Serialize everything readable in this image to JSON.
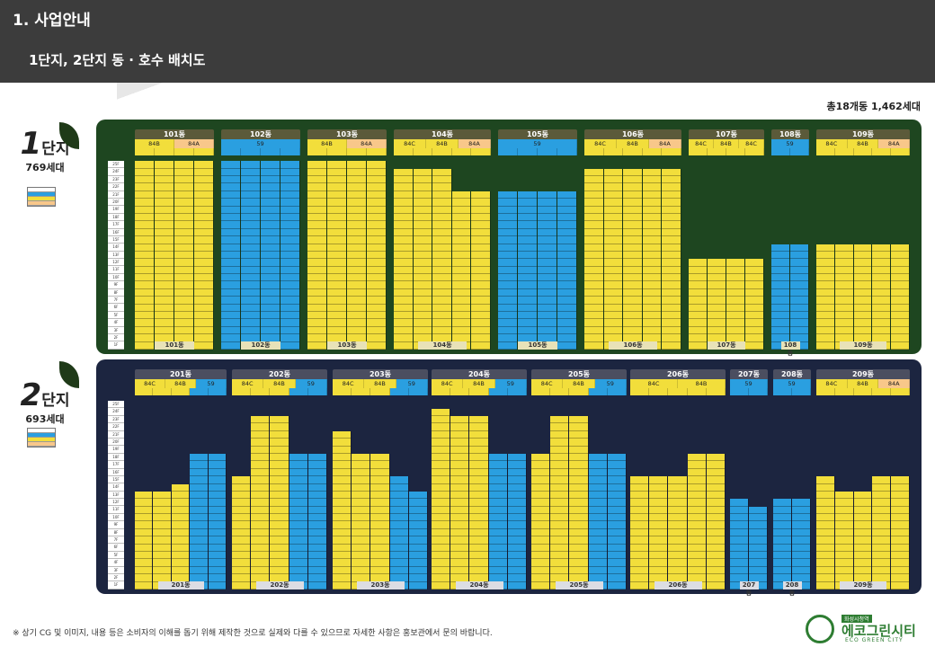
{
  "header": {
    "title": "1. 사업안내",
    "subtitle": "1단지, 2단지 동 · 호수 배치도"
  },
  "total": "총18개동 1,462세대",
  "danji1": {
    "num": "1",
    "label": "단지",
    "count": "769세대"
  },
  "danji2": {
    "num": "2",
    "label": "단지",
    "count": "693세대"
  },
  "floors": [
    "25F",
    "24F",
    "23F",
    "22F",
    "21F",
    "20F",
    "19F",
    "18F",
    "17F",
    "16F",
    "15F",
    "14F",
    "13F",
    "12F",
    "11F",
    "10F",
    "9F",
    "8F",
    "7F",
    "6F",
    "5F",
    "4F",
    "3F",
    "2F",
    "1F"
  ],
  "panel1_dongs": [
    {
      "name": "101동",
      "types": [
        "84B",
        "84A"
      ]
    },
    {
      "name": "102동",
      "types": [
        "59"
      ]
    },
    {
      "name": "103동",
      "types": [
        "84B",
        "84A"
      ]
    },
    {
      "name": "104동",
      "types": [
        "84C",
        "84B",
        "84A"
      ]
    },
    {
      "name": "105동",
      "types": [
        "59"
      ]
    },
    {
      "name": "106동",
      "types": [
        "84C",
        "84B",
        "84A"
      ]
    },
    {
      "name": "107동",
      "types": [
        "84C",
        "84B",
        "84C"
      ]
    },
    {
      "name": "108동",
      "types": [
        "59"
      ]
    },
    {
      "name": "109동",
      "types": [
        "84C",
        "84B",
        "84A"
      ]
    }
  ],
  "panel2_dongs": [
    {
      "name": "201동",
      "types": [
        "84C",
        "84B",
        "59"
      ]
    },
    {
      "name": "202동",
      "types": [
        "84C",
        "84B",
        "59"
      ]
    },
    {
      "name": "203동",
      "types": [
        "84C",
        "84B",
        "59"
      ]
    },
    {
      "name": "204동",
      "types": [
        "84C",
        "84B",
        "59"
      ]
    },
    {
      "name": "205동",
      "types": [
        "84C",
        "84B",
        "59"
      ]
    },
    {
      "name": "206동",
      "types": [
        "84C",
        "84B"
      ]
    },
    {
      "name": "207동",
      "types": [
        "59"
      ]
    },
    {
      "name": "208동",
      "types": [
        "59"
      ]
    },
    {
      "name": "209동",
      "types": [
        "84C",
        "84B",
        "84A"
      ]
    }
  ],
  "note": "※ 상기 CG 및 이미지, 내용 등은 소비자의 이해를 돕기 위해 제작한 것으로 실제와 다를 수 있으므로 자세한 사항은 홍보관에서 문의 바랍니다.",
  "logo": {
    "small": "화성시청역",
    "main": "에코그린시티",
    "en": "ECO GREEN CITY"
  },
  "colors": {
    "84A": "#f8c78a",
    "84B": "#f2de3b",
    "59": "#2a9fe0",
    "panel1": "#1e4620",
    "panel2": "#1c2540"
  }
}
